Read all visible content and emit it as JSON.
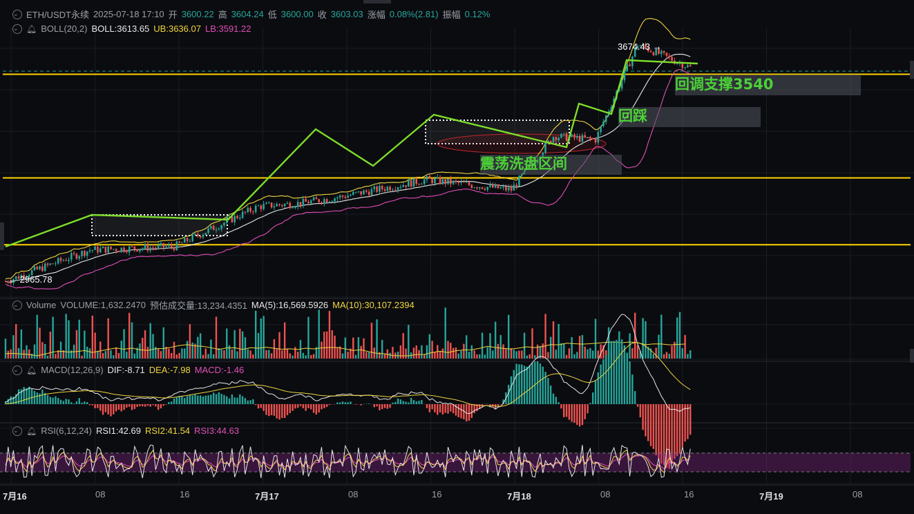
{
  "header": {
    "symbol": "ETH/USDT永续",
    "datetime": "2025-07-18 17:10",
    "open_label": "开",
    "open": "3600.22",
    "high_label": "高",
    "high": "3604.24",
    "low_label": "低",
    "low": "3600.00",
    "close_label": "收",
    "close": "3603.03",
    "change_label": "涨幅",
    "change": "0.08%(2.81)",
    "amp_label": "振幅",
    "amp": "0.12%"
  },
  "boll": {
    "name": "BOLL(20,2)",
    "mid": "BOLL:3613.65",
    "ub": "UB:3636.07",
    "lb": "LB:3591.22"
  },
  "volume": {
    "name": "Volume",
    "vol": "VOLUME:1,632.2470",
    "est": "预估成交量:13,234.4351",
    "ma5": "MA(5):16,569.5926",
    "ma10": "MA(10):30,107.2394"
  },
  "macd": {
    "name": "MACD(12,26,9)",
    "dif": "DIF:-8.71",
    "dea": "DEA:-7.98",
    "macd": "MACD:-1.46"
  },
  "rsi": {
    "name": "RSI(6,12,24)",
    "r1": "RSI1:42.69",
    "r2": "RSI2:41.54",
    "r3": "RSI3:44.63"
  },
  "highlights": {
    "high": "3674.43",
    "low": "2965.78"
  },
  "annotations": {
    "support": "回调支撑3540",
    "retest": "回踩",
    "consolidation": "震荡洗盘区间"
  },
  "xaxis": [
    "7月16",
    "08",
    "16",
    "7月17",
    "08",
    "16",
    "7月18",
    "08",
    "16",
    "7月19",
    "08"
  ],
  "colors": {
    "up": "#26a69a",
    "down": "#ef5350",
    "support": "#ffd400",
    "trend": "#7cdd2a",
    "mid": "#e8e8e8",
    "ub": "#f0d640",
    "lb": "#e04fb8"
  },
  "chart_data": {
    "type": "candlestick",
    "interval": "5m",
    "price_path": [
      {
        "t": "7月16 00:00",
        "price": 2965.78
      },
      {
        "t": "7月16 08:00",
        "price": 3060
      },
      {
        "t": "7月16 16:00",
        "price": 3070
      },
      {
        "t": "7月17 00:00",
        "price": 3190
      },
      {
        "t": "7月17 04:00",
        "price": 3200
      },
      {
        "t": "7月17 08:00",
        "price": 3220
      },
      {
        "t": "7月17 16:00",
        "price": 3270
      },
      {
        "t": "7月18 00:00",
        "price": 3240
      },
      {
        "t": "7月18 04:00",
        "price": 3400
      },
      {
        "t": "7月18 08:00",
        "price": 3390
      },
      {
        "t": "7月18 12:00",
        "price": 3674.43
      },
      {
        "t": "7月18 17:10",
        "price": 3603.03
      }
    ],
    "support_lines": [
      3540,
      3230,
      3030
    ],
    "annotations": [
      "回调支撑3540",
      "回踩",
      "震荡洗盘区间"
    ]
  }
}
